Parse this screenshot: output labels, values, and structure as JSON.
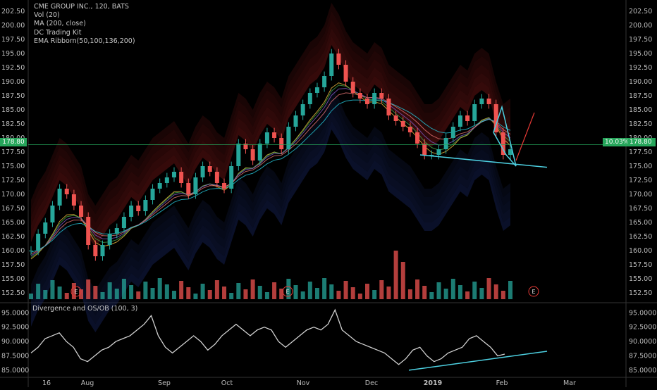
{
  "legend": {
    "title": "CME GROUP INC., 120, BATS",
    "lines": [
      "Vol (20)",
      "MA (200, close)",
      "DC Trading Kit",
      "EMA Ribborn(50,100,136,200)"
    ]
  },
  "indicator": {
    "title": "Divergence and OS/OB (100, 3)"
  },
  "price_tags": {
    "left": "178.80",
    "pct": "10.03%",
    "right": "178.80"
  },
  "earnings_marker": "E",
  "colors": {
    "up": "#26a69a",
    "down": "#ef5350",
    "cyan": "#4dd0e1",
    "grid": "#1a1a1a"
  },
  "chart_data": [
    {
      "type": "line",
      "title": "CME GROUP INC., 120, BATS",
      "xlabel": "",
      "ylabel": "",
      "x_ticks": [
        "16",
        "Aug",
        "Sep",
        "Oct",
        "Nov",
        "Dec",
        "2019",
        "Feb",
        "Mar"
      ],
      "y_ticks": [
        "202.50",
        "200.00",
        "197.50",
        "195.00",
        "192.50",
        "190.00",
        "187.50",
        "185.00",
        "182.50",
        "180.00",
        "177.50",
        "175.00",
        "172.50",
        "170.00",
        "167.50",
        "165.00",
        "162.50",
        "160.00",
        "157.50",
        "155.00",
        "152.50"
      ],
      "ylim": [
        151,
        204
      ],
      "series": [
        {
          "values": [
            160,
            163,
            165,
            168,
            171,
            170,
            168,
            166,
            161,
            159,
            161,
            163,
            164,
            166,
            168,
            167,
            169,
            171,
            172,
            173,
            174,
            172,
            170,
            173,
            175,
            174,
            172,
            171,
            175,
            179,
            178,
            176,
            179,
            181,
            180,
            178,
            182,
            184,
            186,
            188,
            189,
            191,
            195,
            193,
            190,
            188,
            187,
            186,
            188,
            187,
            184,
            183,
            182,
            181,
            179,
            177,
            177,
            178,
            180,
            182,
            184,
            183,
            186,
            187,
            186,
            181,
            177,
            178
          ]
        }
      ],
      "legend": "top-left",
      "grid": false
    },
    {
      "type": "line",
      "title": "Divergence and OS/OB (100, 3)",
      "y_ticks": [
        "95.0000",
        "92.5000",
        "90.0000",
        "87.5000",
        "85.0000"
      ],
      "ylim": [
        84.5,
        96.5
      ],
      "series": [
        {
          "values": [
            88,
            89,
            90.5,
            91,
            91.5,
            90,
            89,
            87,
            86.5,
            87.5,
            88.5,
            89,
            90,
            90.5,
            91,
            92,
            93,
            94.5,
            91,
            89,
            88,
            89,
            90,
            91,
            90,
            88.5,
            89.5,
            91,
            92,
            93,
            92,
            91,
            92,
            92.5,
            92,
            90,
            89,
            90,
            91,
            92,
            92.5,
            92,
            93,
            95.5,
            92,
            91,
            90,
            89.5,
            89,
            88.5,
            88,
            87,
            86,
            87,
            88.5,
            89,
            87.5,
            86.5,
            87,
            88,
            88.5,
            89,
            90.5,
            91,
            90,
            89,
            87.5,
            87.8
          ]
        }
      ]
    }
  ]
}
